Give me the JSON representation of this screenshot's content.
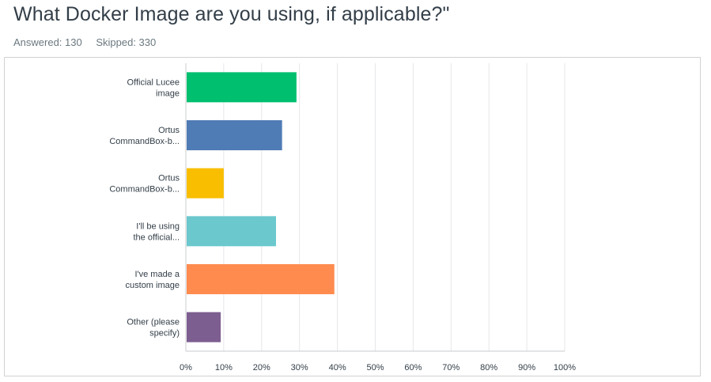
{
  "question": {
    "title": "What Docker Image are you using, if applicable?\""
  },
  "stats": {
    "answered": "Answered: 130",
    "skipped": "Skipped: 330"
  },
  "chart_data": {
    "type": "bar",
    "orientation": "horizontal",
    "categories": [
      [
        "Official Lucee",
        "image"
      ],
      [
        "Ortus",
        "CommandBox-b..."
      ],
      [
        "Ortus",
        "CommandBox-b..."
      ],
      [
        "I'll be using",
        "the official..."
      ],
      [
        "I've made a",
        "custom image"
      ],
      [
        "Other (please",
        "specify)"
      ]
    ],
    "values": [
      29.2,
      25.4,
      10.0,
      23.8,
      39.2,
      9.2
    ],
    "colors": [
      "#00bf6f",
      "#507cb6",
      "#f9be00",
      "#6bc8cd",
      "#ff8b4f",
      "#7d5e90"
    ],
    "xlim": [
      0,
      100
    ],
    "xticks": [
      "0%",
      "10%",
      "20%",
      "30%",
      "40%",
      "50%",
      "60%",
      "70%",
      "80%",
      "90%",
      "100%"
    ],
    "grid": true,
    "xlabel": "",
    "ylabel": ""
  }
}
